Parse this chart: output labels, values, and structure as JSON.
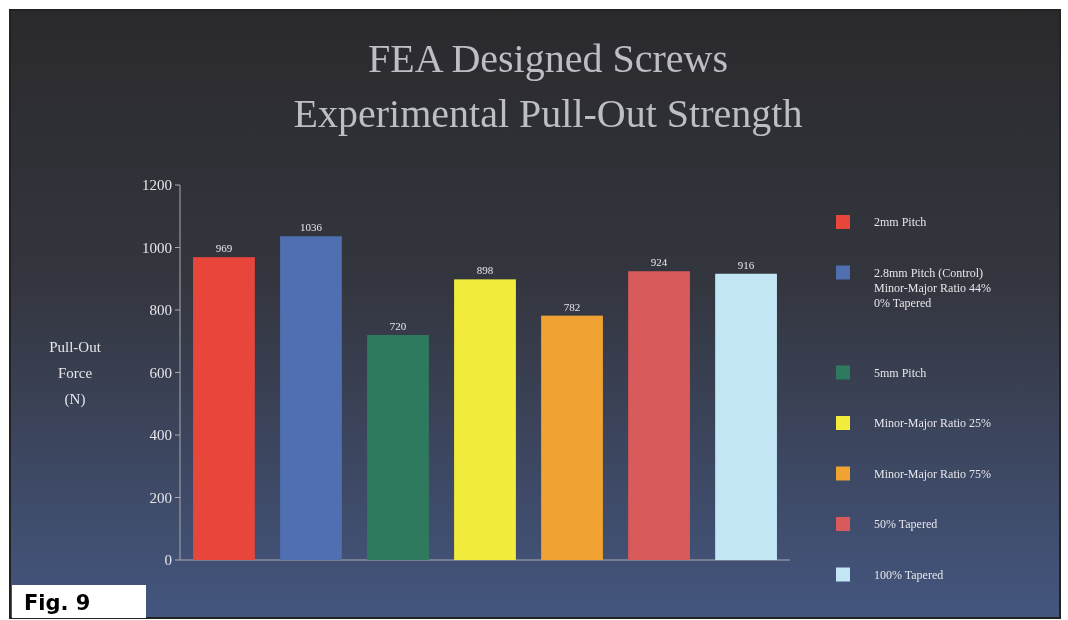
{
  "chart_data": {
    "type": "bar",
    "title": "FEA Designed Screws\nExperimental Pull-Out Strength",
    "ylabel": "Pull-Out\nForce\n(N)",
    "categories": [
      null,
      null,
      null,
      null,
      null,
      null,
      null
    ],
    "stacked": true,
    "series": [
      {
        "name": "2mm Pitch",
        "color": "#e8463a",
        "values": [
          969,
          null,
          null,
          null,
          null,
          null,
          null
        ]
      },
      {
        "name": "2.8mm Pitch (Control)\nMinor-Major Ratio 44%\n0% Tapered",
        "color": "#4f6fb0",
        "values": [
          null,
          1036,
          null,
          null,
          null,
          null,
          null
        ]
      },
      {
        "name": "5mm Pitch",
        "color": "#2e7a5e",
        "values": [
          null,
          null,
          720,
          null,
          null,
          null,
          null
        ]
      },
      {
        "name": "Minor-Major Ratio 25%",
        "color": "#f2ec3c",
        "values": [
          null,
          null,
          null,
          898,
          null,
          null,
          null
        ]
      },
      {
        "name": "Minor-Major Ratio 75%",
        "color": "#f0a232",
        "values": [
          null,
          null,
          null,
          null,
          782,
          null,
          null
        ]
      },
      {
        "name": "50% Tapered",
        "color": "#d95a5a",
        "values": [
          null,
          null,
          null,
          null,
          null,
          924,
          null
        ]
      },
      {
        "name": "100% Tapered",
        "color": "#c3e6f5",
        "values": [
          null,
          null,
          null,
          null,
          null,
          null,
          916
        ]
      }
    ],
    "ylim": [
      0,
      1200
    ],
    "yticks": [
      0,
      200,
      400,
      600,
      800,
      1000,
      1200
    ],
    "data_labels": true,
    "legend": "right",
    "annotations": [
      "Fig. 9"
    ]
  }
}
